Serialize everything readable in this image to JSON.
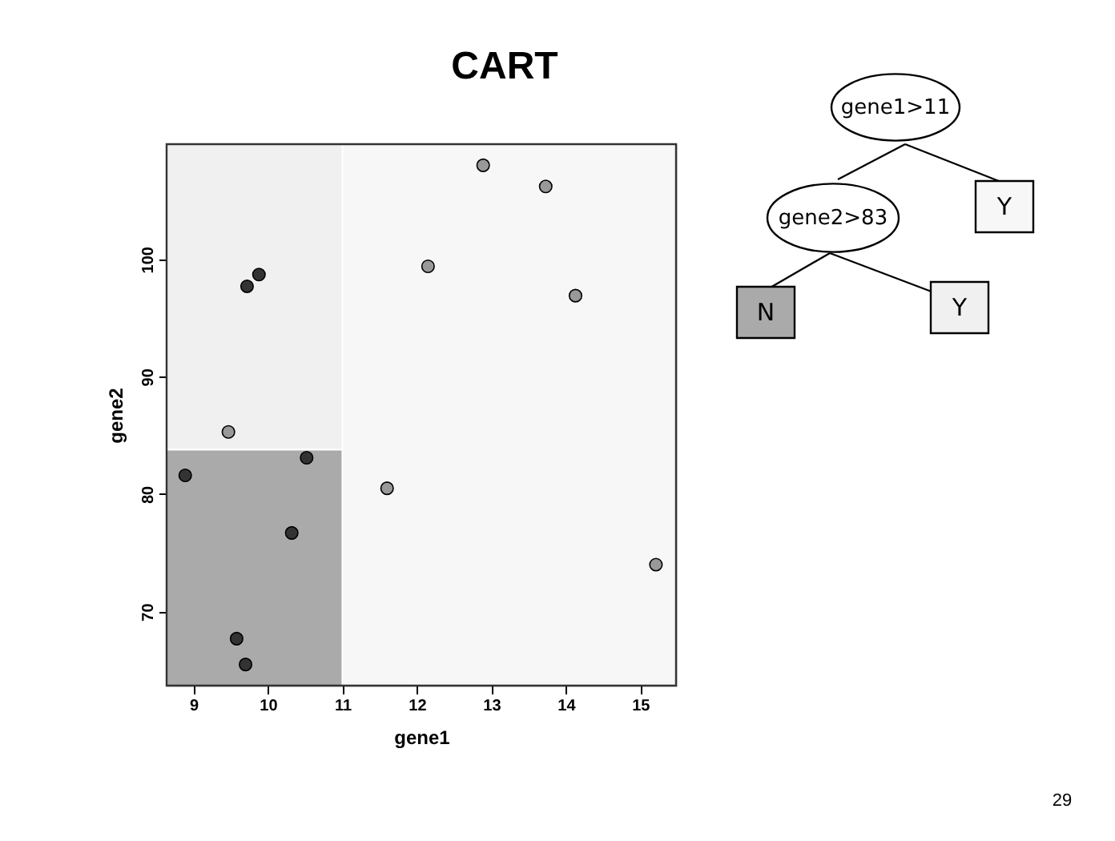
{
  "chart_data": {
    "type": "scatter",
    "title": "CART",
    "xlabel": "gene1",
    "ylabel": "gene2",
    "xlim": [
      8.64,
      15.48
    ],
    "ylim": [
      63.7,
      109.8
    ],
    "xticks": [
      9,
      10,
      11,
      12,
      13,
      14,
      15
    ],
    "yticks": [
      70,
      80,
      90,
      100
    ],
    "marker": "circle",
    "series": [
      {
        "color": "#333333",
        "x": [
          8.89,
          9.72,
          9.88,
          10.52,
          10.32,
          9.58,
          9.7
        ],
        "values": [
          81.6,
          97.7,
          98.7,
          83.1,
          76.7,
          67.7,
          65.5
        ]
      },
      {
        "color": "#999999",
        "x": [
          9.47,
          11.6,
          12.15,
          12.89,
          13.73,
          14.13,
          15.21
        ],
        "values": [
          85.3,
          80.5,
          99.4,
          108.0,
          106.2,
          96.9,
          74.0
        ]
      }
    ],
    "bands": [
      {
        "axis": "y",
        "from": 63.7,
        "to": 83.8,
        "color": "#aaaaaa"
      },
      {
        "axis": "y",
        "from": 83.8,
        "to": 109.8,
        "color": "#f0f0f0"
      },
      {
        "axis": "x",
        "from": 11,
        "to": 15.48,
        "color": "#f7f7f7"
      }
    ],
    "annotations": [
      "gene1>11",
      "gene2>83",
      "N",
      "Y",
      "Y",
      "29"
    ]
  }
}
